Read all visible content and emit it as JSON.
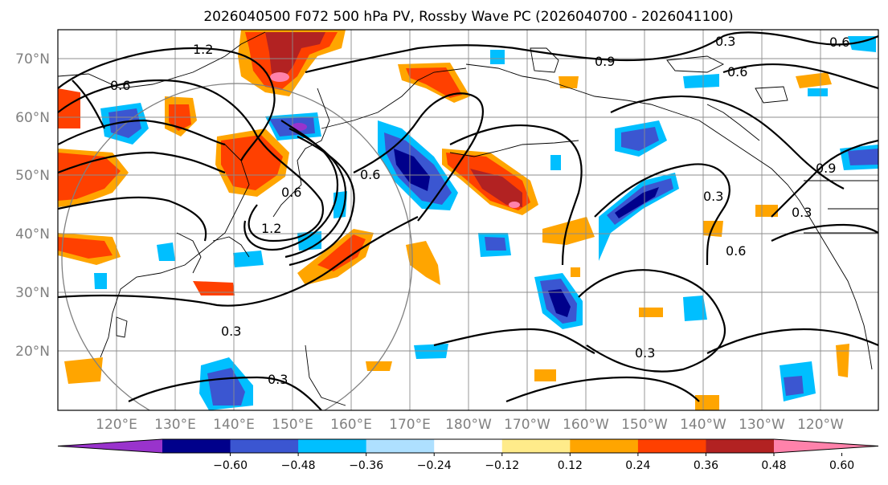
{
  "title": "2026040500 F072 500 hPa PV, Rossby Wave PC (2026040700 - 2026041100)",
  "lat_labels": [
    "70°N",
    "60°N",
    "50°N",
    "40°N",
    "30°N",
    "20°N"
  ],
  "lon_labels": [
    "120°E",
    "130°E",
    "140°E",
    "150°E",
    "160°E",
    "170°E",
    "180°W",
    "170°W",
    "160°W",
    "150°W",
    "140°W",
    "130°W",
    "120°W"
  ],
  "contour_labels": [
    "1.2",
    "0.6",
    "0.9",
    "0.3",
    "0.6",
    "0.6",
    "1.2",
    "0.3",
    "0.3",
    "0.3",
    "0.9",
    "0.6",
    "0.3",
    "0.6",
    "0.6",
    "0.3"
  ],
  "colorbar": {
    "ticks": [
      "−0.60",
      "−0.48",
      "−0.36",
      "−0.24",
      "−0.12",
      "0.12",
      "0.24",
      "0.36",
      "0.48",
      "0.60"
    ],
    "colors": [
      "#9933cc",
      "#00008b",
      "#3b56d1",
      "#00bfff",
      "#aee0ff",
      "#ffffff",
      "#ffeb8a",
      "#ffa500",
      "#ff4000",
      "#b22222",
      "#ff82ab"
    ]
  },
  "legend_values": {
    "min_color": "#9933cc",
    "max_color": "#ff82ab"
  }
}
